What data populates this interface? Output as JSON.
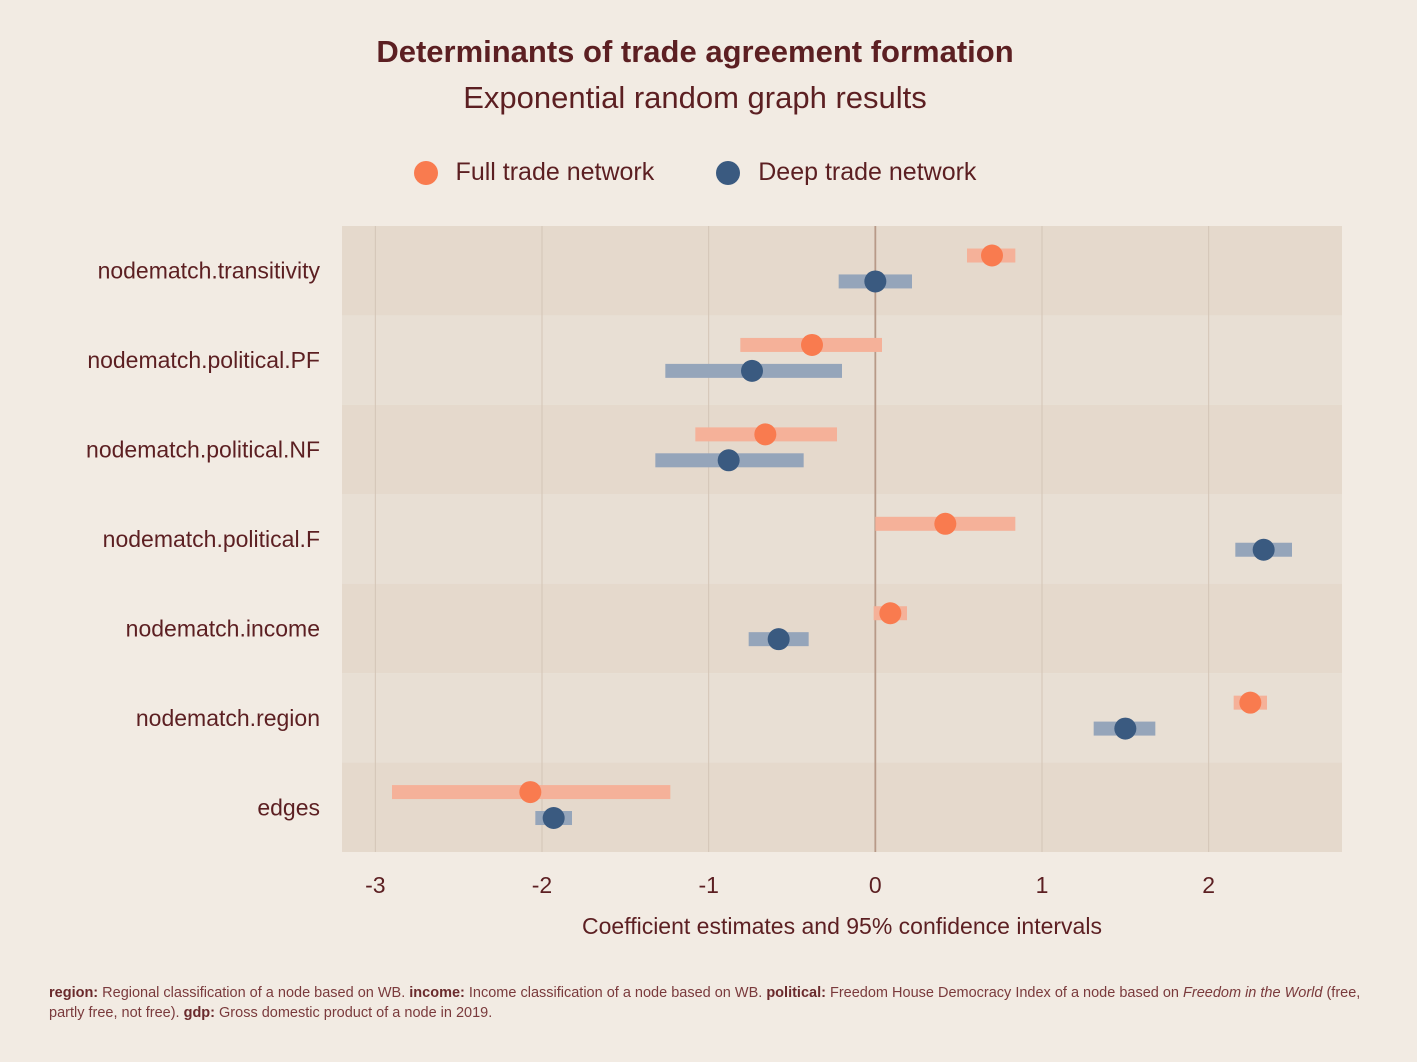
{
  "chart_data": {
    "type": "scatter",
    "title": "Determinants of trade agreement formation",
    "subtitle": "Exponential random graph results",
    "xlabel": "Coefficient estimates and 95% confidence intervals",
    "ylabel": "",
    "xlim": [
      -3.2,
      2.8
    ],
    "xticks": [
      -3,
      -2,
      -1,
      0,
      1,
      2
    ],
    "legend_position": "top",
    "categories": [
      "nodematch.transitivity",
      "nodematch.political.PF",
      "nodematch.political.NF",
      "nodematch.political.F",
      "nodematch.income",
      "nodematch.region",
      "edges"
    ],
    "series": [
      {
        "name": "Full trade network",
        "color": "#f97b4f",
        "estimate": [
          0.7,
          -0.38,
          -0.66,
          0.42,
          0.09,
          2.25,
          -2.07
        ],
        "ci_low": [
          0.55,
          -0.81,
          -1.08,
          0.0,
          -0.01,
          2.15,
          -2.9
        ],
        "ci_high": [
          0.84,
          0.04,
          -0.23,
          0.84,
          0.19,
          2.35,
          -1.23
        ]
      },
      {
        "name": "Deep trade network",
        "color": "#3a5a80",
        "estimate": [
          0.0,
          -0.74,
          -0.88,
          2.33,
          -0.58,
          1.5,
          -1.93
        ],
        "ci_low": [
          -0.22,
          -1.26,
          -1.32,
          2.16,
          -0.76,
          1.31,
          -2.04
        ],
        "ci_high": [
          0.22,
          -0.2,
          -0.43,
          2.5,
          -0.4,
          1.68,
          -1.82
        ]
      }
    ]
  },
  "caption": {
    "b1": "region:",
    "t1": " Regional classification of a node based on WB. ",
    "b2": "income:",
    "t2": " Income classification of a node based on WB. ",
    "b3": "political:",
    "t3": " Freedom House Democracy Index of a node based on ",
    "i1": "Freedom in the World",
    "t4": " (free, partly free, not free). ",
    "b4": "gdp:",
    "t5": " Gross domestic product of a node in 2019."
  }
}
